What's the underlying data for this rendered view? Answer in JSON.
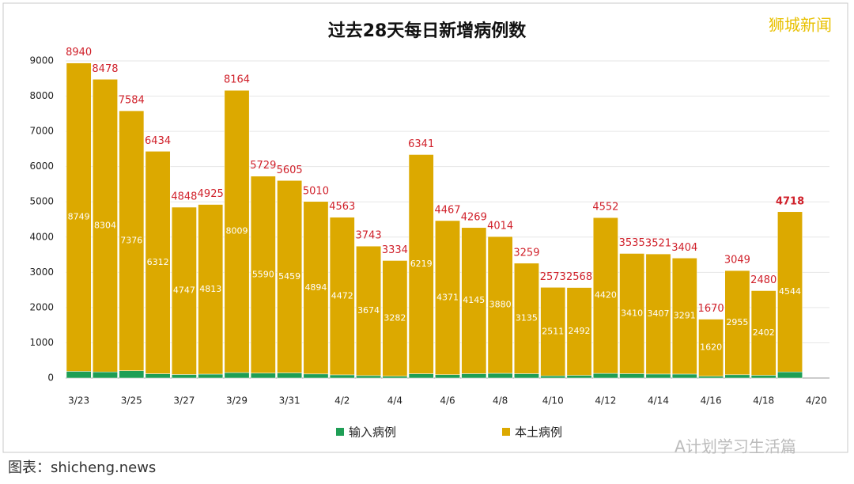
{
  "chart_data": {
    "type": "stacked_bar",
    "title": "过去28天每日新增病例数",
    "brand": "狮城新闻",
    "watermark": "A计划学习生活篇",
    "source": "图表：shicheng.news",
    "categories": [
      "3/23",
      null,
      "3/25",
      null,
      "3/27",
      null,
      "3/29",
      null,
      "3/31",
      null,
      "4/2",
      null,
      "4/4",
      null,
      "4/6",
      null,
      "4/8",
      null,
      "4/10",
      null,
      "4/12",
      null,
      "4/14",
      null,
      "4/16",
      null,
      "4/18",
      null,
      "4/20"
    ],
    "series": [
      {
        "name": "输入病例",
        "color": "#1e9e55",
        "values": [
          191,
          174,
          208,
          122,
          101,
          112,
          155,
          139,
          146,
          116,
          91,
          69,
          52,
          122,
          96,
          124,
          134,
          124,
          62,
          76,
          132,
          125,
          114,
          113,
          50,
          94,
          78,
          174,
          null
        ]
      },
      {
        "name": "本土病例",
        "color": "#dca900",
        "values": [
          8749,
          8304,
          7376,
          6312,
          4747,
          4813,
          8009,
          5590,
          5459,
          4894,
          4472,
          3674,
          3282,
          6219,
          4371,
          4145,
          3880,
          3135,
          2511,
          2492,
          4420,
          3410,
          3407,
          3291,
          1620,
          2955,
          2402,
          4544,
          null
        ]
      }
    ],
    "totals": [
      8940,
      8478,
      7584,
      6434,
      4848,
      4925,
      8164,
      5729,
      5605,
      5010,
      4563,
      3743,
      3334,
      6341,
      4467,
      4269,
      4014,
      3259,
      2573,
      2568,
      4552,
      3535,
      3521,
      3404,
      1670,
      3049,
      2480,
      4718,
      null
    ],
    "ylim": [
      0,
      9000
    ],
    "yticks": [
      0,
      1000,
      2000,
      3000,
      4000,
      5000,
      6000,
      7000,
      8000,
      9000
    ],
    "grid": true,
    "legend": "bottom"
  }
}
